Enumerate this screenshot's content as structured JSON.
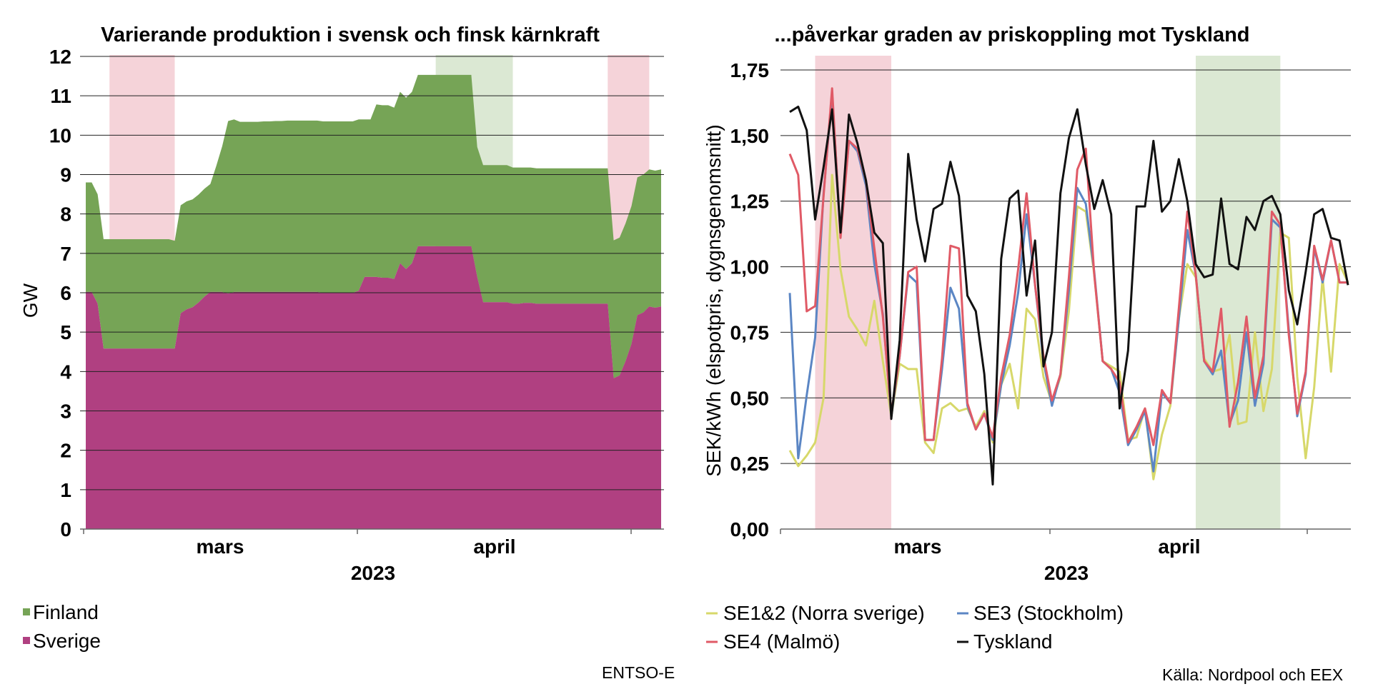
{
  "chart_data": [
    {
      "type": "area",
      "stacked": true,
      "title": "Varierande produktion i svensk och finsk kärnkraft",
      "ylabel": "GW",
      "xlabel": "2023",
      "ylim": [
        0,
        12
      ],
      "yticks": [
        "0",
        "1",
        "2",
        "3",
        "4",
        "5",
        "6",
        "7",
        "8",
        "9",
        "10",
        "11",
        "12"
      ],
      "xtick_labels": [
        "mars",
        "april"
      ],
      "grid": true,
      "legend_position": "bottom-left",
      "shaded_periods": [
        {
          "color": "#f5d3d9",
          "start": 4,
          "end": 15
        },
        {
          "color": "#dbe8d3",
          "start": 59,
          "end": 72
        },
        {
          "color": "#f5d3d9",
          "start": 88,
          "end": 95
        }
      ],
      "series": [
        {
          "name": "Sverige",
          "color": "#b04081",
          "values": [
            6.02,
            6.02,
            5.72,
            4.58,
            4.58,
            4.58,
            4.58,
            4.58,
            4.58,
            4.58,
            4.58,
            4.58,
            4.58,
            4.58,
            4.58,
            4.58,
            5.48,
            5.58,
            5.63,
            5.75,
            5.9,
            6.02,
            6.02,
            6.02,
            5.98,
            6.02,
            6.02,
            6.02,
            6.02,
            6.02,
            6.02,
            6.02,
            6.02,
            6.02,
            6.02,
            6.02,
            6.02,
            6.02,
            6.02,
            6.02,
            6.0,
            6.0,
            6.0,
            6.0,
            6.0,
            6.0,
            6.05,
            6.4,
            6.4,
            6.4,
            6.38,
            6.38,
            6.35,
            6.75,
            6.6,
            6.75,
            7.18,
            7.18,
            7.18,
            7.18,
            7.18,
            7.18,
            7.18,
            7.18,
            7.18,
            7.18,
            6.4,
            5.76,
            5.76,
            5.76,
            5.76,
            5.76,
            5.72,
            5.72,
            5.74,
            5.74,
            5.72,
            5.72,
            5.72,
            5.72,
            5.72,
            5.72,
            5.72,
            5.72,
            5.72,
            5.72,
            5.72,
            5.72,
            5.72,
            3.83,
            3.9,
            4.26,
            4.7,
            5.43,
            5.5,
            5.65,
            5.62,
            5.65
          ]
        },
        {
          "name": "Finland",
          "color": "#76a456",
          "values": [
            2.78,
            2.78,
            2.78,
            2.78,
            2.78,
            2.78,
            2.78,
            2.78,
            2.78,
            2.78,
            2.78,
            2.78,
            2.78,
            2.78,
            2.78,
            2.74,
            2.74,
            2.74,
            2.74,
            2.74,
            2.74,
            2.74,
            3.2,
            3.7,
            4.38,
            4.38,
            4.32,
            4.32,
            4.32,
            4.32,
            4.33,
            4.33,
            4.34,
            4.34,
            4.35,
            4.35,
            4.35,
            4.35,
            4.35,
            4.35,
            4.35,
            4.35,
            4.35,
            4.35,
            4.35,
            4.35,
            4.35,
            4.0,
            4.0,
            4.38,
            4.38,
            4.38,
            4.35,
            4.35,
            4.35,
            4.35,
            4.35,
            4.35,
            4.35,
            4.35,
            4.35,
            4.35,
            4.35,
            4.35,
            4.35,
            4.35,
            3.3,
            3.48,
            3.48,
            3.48,
            3.48,
            3.48,
            3.46,
            3.46,
            3.44,
            3.44,
            3.44,
            3.44,
            3.44,
            3.44,
            3.44,
            3.44,
            3.44,
            3.44,
            3.44,
            3.44,
            3.44,
            3.44,
            3.44,
            3.5,
            3.5,
            3.5,
            3.5,
            3.5,
            3.5,
            3.48,
            3.48,
            3.48
          ]
        }
      ]
    },
    {
      "type": "line",
      "title": "...påverkar graden av priskoppling mot Tyskland",
      "ylabel": "SEK/kWh (elspotpris, dygnsgenomsnitt)",
      "xlabel": "2023",
      "ylim": [
        0,
        1.75
      ],
      "yticks": [
        "0,00",
        "0,25",
        "0,50",
        "0,75",
        "1,00",
        "1,25",
        "1,50",
        "1,75"
      ],
      "xtick_labels": [
        "mars",
        "april"
      ],
      "grid": true,
      "legend_position": "bottom",
      "shaded_periods": [
        {
          "color": "#f5d3d9",
          "start": 3,
          "end": 12
        },
        {
          "color": "#dbe8d3",
          "start": 48,
          "end": 58
        },
        {
          "color": "#f5d3d9",
          "start": 71,
          "end": 76
        }
      ],
      "series": [
        {
          "name": "SE1&2 (Norra sverige)",
          "color": "#d7d86a",
          "values": [
            0.3,
            0.24,
            0.28,
            0.33,
            0.5,
            1.35,
            0.99,
            0.81,
            0.76,
            0.7,
            0.87,
            0.64,
            0.43,
            0.63,
            0.61,
            0.61,
            0.33,
            0.29,
            0.46,
            0.48,
            0.45,
            0.46,
            0.39,
            0.45,
            0.33,
            0.55,
            0.63,
            0.46,
            0.84,
            0.8,
            0.58,
            0.48,
            0.58,
            0.83,
            1.23,
            1.21,
            0.97,
            0.64,
            0.62,
            0.6,
            0.34,
            0.35,
            0.46,
            0.19,
            0.36,
            0.47,
            0.8,
            1.01,
            0.96,
            0.65,
            0.6,
            0.61,
            0.74,
            0.4,
            0.41,
            0.75,
            0.45,
            0.61,
            1.13,
            1.11,
            0.58,
            0.27,
            0.54,
            0.96,
            0.6,
            1.01,
            0.94
          ]
        },
        {
          "name": "SE3 (Stockholm)",
          "color": "#5b86c4",
          "values": [
            0.9,
            0.27,
            0.51,
            0.73,
            1.28,
            1.66,
            1.13,
            1.48,
            1.44,
            1.31,
            1.01,
            0.82,
            0.43,
            0.66,
            0.97,
            0.94,
            0.34,
            0.34,
            0.61,
            0.92,
            0.84,
            0.47,
            0.38,
            0.44,
            0.34,
            0.55,
            0.7,
            0.9,
            1.2,
            0.93,
            0.64,
            0.47,
            0.59,
            0.91,
            1.3,
            1.24,
            0.98,
            0.64,
            0.61,
            0.52,
            0.32,
            0.38,
            0.45,
            0.22,
            0.52,
            0.48,
            0.8,
            1.14,
            0.97,
            0.64,
            0.59,
            0.68,
            0.4,
            0.49,
            0.75,
            0.47,
            0.63,
            1.18,
            1.15,
            0.76,
            0.43,
            0.59,
            1.07,
            0.94,
            1.1,
            0.94,
            0.94
          ]
        },
        {
          "name": "SE4 (Malmö)",
          "color": "#e05a66",
          "values": [
            1.43,
            1.35,
            0.83,
            0.85,
            1.27,
            1.68,
            1.11,
            1.48,
            1.45,
            1.33,
            1.07,
            0.81,
            0.44,
            0.66,
            0.98,
            1.0,
            0.34,
            0.34,
            0.65,
            1.08,
            1.07,
            0.48,
            0.38,
            0.44,
            0.35,
            0.58,
            0.74,
            0.99,
            1.28,
            0.93,
            0.66,
            0.49,
            0.59,
            0.96,
            1.37,
            1.45,
            0.97,
            0.64,
            0.61,
            0.56,
            0.33,
            0.39,
            0.46,
            0.32,
            0.53,
            0.48,
            0.84,
            1.21,
            0.97,
            0.64,
            0.6,
            0.84,
            0.39,
            0.56,
            0.81,
            0.5,
            0.66,
            1.21,
            1.16,
            0.74,
            0.44,
            0.6,
            1.08,
            0.95,
            1.1,
            0.94,
            0.94
          ]
        },
        {
          "name": "Tyskland",
          "color": "#111111",
          "values": [
            1.59,
            1.61,
            1.52,
            1.18,
            1.38,
            1.6,
            1.13,
            1.58,
            1.47,
            1.33,
            1.13,
            1.09,
            0.42,
            0.72,
            1.43,
            1.18,
            1.02,
            1.22,
            1.24,
            1.4,
            1.27,
            0.89,
            0.83,
            0.59,
            0.17,
            1.03,
            1.26,
            1.29,
            0.89,
            1.1,
            0.62,
            0.75,
            1.28,
            1.49,
            1.6,
            1.39,
            1.22,
            1.33,
            1.2,
            0.46,
            0.68,
            1.23,
            1.23,
            1.48,
            1.21,
            1.25,
            1.41,
            1.25,
            1.01,
            0.96,
            0.97,
            1.26,
            1.01,
            0.99,
            1.19,
            1.14,
            1.25,
            1.27,
            1.2,
            0.91,
            0.78,
            0.98,
            1.2,
            1.22,
            1.11,
            1.1,
            0.93
          ]
        }
      ]
    }
  ],
  "left_source": "ENTSO-E",
  "right_source": "Källa: Nordpool och EEX"
}
